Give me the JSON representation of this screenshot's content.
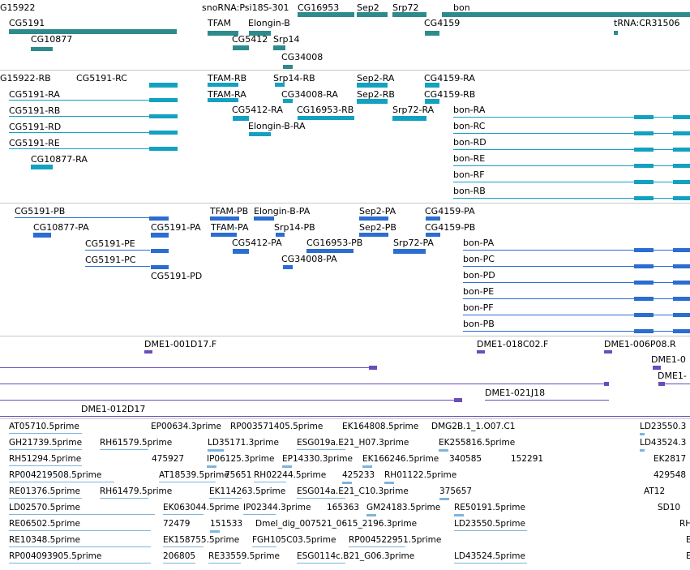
{
  "tracks": {
    "genes": {
      "color": "#2e8b8b",
      "features": [
        "G15922",
        "CG5191",
        "CG10877",
        "snoRNA:Psi18S-301",
        "CG16953",
        "TFAM",
        "Elongin-B",
        "CG5412",
        "Srp14",
        "CG34008",
        "Sep2",
        "Srp72",
        "CG4159",
        "bon",
        "tRNA:CR31506"
      ]
    },
    "transcripts": {
      "color": "#13a1c2",
      "features": [
        "G15922-RB",
        "CG5191-RC",
        "CG5191-RA",
        "CG5191-RB",
        "CG5191-RD",
        "CG5191-RE",
        "CG10877-RA",
        "TFAM-RB",
        "TFAM-RA",
        "Srp14-RB",
        "CG34008-RA",
        "CG5412-RA",
        "CG16953-RB",
        "Elongin-B-RA",
        "Sep2-RA",
        "Sep2-RB",
        "Srp72-RA",
        "CG4159-RA",
        "CG4159-RB",
        "bon-RA",
        "bon-RC",
        "bon-RD",
        "bon-RE",
        "bon-RF",
        "bon-RB"
      ]
    },
    "proteins": {
      "color": "#2b6dd1",
      "features": [
        "CG5191-PB",
        "CG10877-PA",
        "CG5191-PE",
        "CG5191-PC",
        "CG5191-PA",
        "CG5191-PD",
        "TFAM-PB",
        "Elongin-B-PA",
        "TFAM-PA",
        "CG5412-PA",
        "Srp14-PB",
        "CG16953-PB",
        "CG34008-PA",
        "Sep2-PA",
        "Sep2-PB",
        "Srp72-PA",
        "CG4159-PA",
        "CG4159-PB",
        "bon-PA",
        "bon-PC",
        "bon-PD",
        "bon-PE",
        "bon-PF",
        "bon-PB"
      ]
    },
    "clones": {
      "color": "#6a4cba",
      "features": [
        "DME1-001D17.F",
        "DME1-018C02.F",
        "DME1-006P08.R",
        "DME1-0",
        "DME1-",
        "DME1-021J18",
        "DME1-012D17"
      ]
    },
    "ests": {
      "color": "#7fb4dc",
      "features": [
        "AT05710.5prime",
        "EP00634.3prime",
        "RP003571405.5prime",
        "EK164808.5prime",
        "DMG2B.1_1.O07.C1",
        "LD23550.3",
        "GH21739.5prime",
        "RH61579.5prime",
        "LD35171.3prime",
        "ESG019a.E21_H07.3prime",
        "EK255816.5prime",
        "LD43524.3",
        "RH51294.5prime",
        "475927",
        "IP06125.3prime",
        "EP14330.3prime",
        "EK166246.5prime",
        "340585",
        "152291",
        "EK2817",
        "RP004219508.5prime",
        "AT18539.5prime",
        "75651",
        "RH02244.5prime",
        "425233",
        "RH01122.5prime",
        "429548",
        "RE01376.5prime",
        "RH61479.5prime",
        "EK114263.5prime",
        "ESG014a.E21_C10.3prime",
        "375657",
        "AT12",
        "LD02570.5prime",
        "EK063044.5prime",
        "IP02344.3prime",
        "165363",
        "GM24183.5prime",
        "RE50191.5prime",
        "SD10",
        "RE06502.5prime",
        "72479",
        "151533",
        "Dmel_dig_007521_0615_2196.3prime",
        "LD23550.5prime",
        "RH",
        "RE10348.5prime",
        "EK158755.5prime",
        "FGH105C03.5prime",
        "RP004522951.5prime",
        "E",
        "RP004093905.5prime",
        "206805",
        "RE33559.5prime",
        "ESG0114c.B21_G06.3prime",
        "LD43524.5prime",
        "E"
      ]
    }
  }
}
